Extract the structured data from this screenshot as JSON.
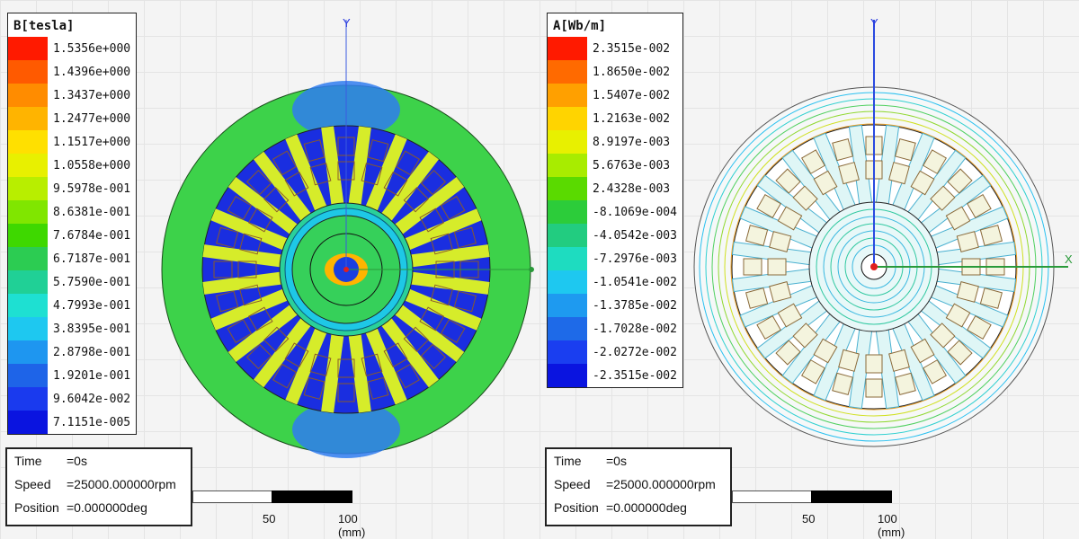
{
  "panels": [
    {
      "legend": {
        "title": "B[tesla]",
        "values": [
          "1.5356e+000",
          "1.4396e+000",
          "1.3437e+000",
          "1.2477e+000",
          "1.1517e+000",
          "1.0558e+000",
          "9.5978e-001",
          "8.6381e-001",
          "7.6784e-001",
          "6.7187e-001",
          "5.7590e-001",
          "4.7993e-001",
          "3.8395e-001",
          "2.8798e-001",
          "1.9201e-001",
          "9.6042e-002",
          "7.1151e-005"
        ],
        "colors": [
          "#ff1a00",
          "#ff5a00",
          "#ff8c00",
          "#ffb400",
          "#ffe000",
          "#e8f000",
          "#b8ee00",
          "#80e600",
          "#3ed800",
          "#2ccc52",
          "#20d096",
          "#1ee0d2",
          "#1ec8f0",
          "#1e96f0",
          "#1e64e8",
          "#1a3aee",
          "#0a14e0"
        ]
      },
      "axis": {
        "y_label": "Y"
      },
      "info": {
        "time_label": "Time",
        "time_value": "=0s",
        "speed_label": "Speed",
        "speed_value": "=25000.000000rpm",
        "position_label": "Position",
        "position_value": "=0.000000deg"
      },
      "scale": {
        "mid_label": "50",
        "end_label": "100 (mm)"
      }
    },
    {
      "legend": {
        "title": "A[Wb/m]",
        "values": [
          "2.3515e-002",
          "1.8650e-002",
          "1.5407e-002",
          "1.2163e-002",
          "8.9197e-003",
          "5.6763e-003",
          "2.4328e-003",
          "-8.1069e-004",
          "-4.0542e-003",
          "-7.2976e-003",
          "-1.0541e-002",
          "-1.3785e-002",
          "-1.7028e-002",
          "-2.0272e-002",
          "-2.3515e-002"
        ],
        "colors": [
          "#ff1a00",
          "#ff6a00",
          "#ffa000",
          "#ffd400",
          "#e8f000",
          "#a8ec00",
          "#5ada00",
          "#2ccc3a",
          "#22cc80",
          "#1edcc0",
          "#1ec8f0",
          "#1e9af0",
          "#1e6ae8",
          "#1a3ef0",
          "#0a14e0"
        ]
      },
      "axis": {
        "y_label": "Y",
        "x_label": "X"
      },
      "info": {
        "time_label": "Time",
        "time_value": "=0s",
        "speed_label": "Speed",
        "speed_value": "=25000.000000rpm",
        "position_label": "Position",
        "position_value": "=0.000000deg"
      },
      "scale": {
        "mid_label": "50",
        "end_label": "100 (mm)"
      }
    }
  ]
}
